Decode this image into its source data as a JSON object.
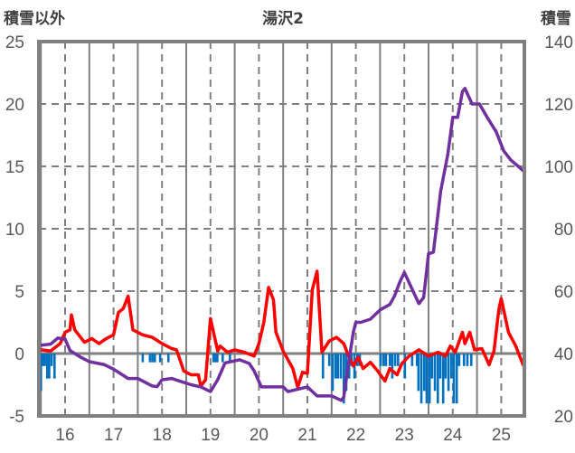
{
  "chart_data": {
    "type": "line",
    "title": "湯沢2",
    "ylabel_left": "積雪以外",
    "ylabel_right": "積雪",
    "xlim": [
      15.46,
      25.49
    ],
    "ylim_left": [
      -5,
      25
    ],
    "ylim_right": [
      20,
      140
    ],
    "x_ticks": [
      "16",
      "17",
      "18",
      "19",
      "20",
      "21",
      "22",
      "23",
      "24",
      "25"
    ],
    "y_ticks_left": [
      "25",
      "20",
      "15",
      "10",
      "5",
      "0",
      "-5"
    ],
    "y_ticks_right": [
      "140",
      "120",
      "100",
      "80",
      "60",
      "40",
      "20"
    ],
    "grid": true,
    "colors": {
      "temperature": "#ff0000",
      "snow_depth": "#7030a0",
      "bars": "#0070c0",
      "axis": "#808080",
      "grid": "#808080",
      "text": "#595959"
    },
    "series": [
      {
        "name": "red-line",
        "axis": "left",
        "color": "#ff0000",
        "points": [
          [
            15.5,
            0.3
          ],
          [
            15.7,
            0.2
          ],
          [
            15.9,
            0.8
          ],
          [
            16.0,
            1.7
          ],
          [
            16.1,
            1.9
          ],
          [
            16.13,
            3.1
          ],
          [
            16.2,
            1.9
          ],
          [
            16.4,
            0.9
          ],
          [
            16.55,
            1.2
          ],
          [
            16.7,
            0.8
          ],
          [
            16.85,
            1.2
          ],
          [
            17.0,
            1.5
          ],
          [
            17.1,
            3.3
          ],
          [
            17.2,
            3.6
          ],
          [
            17.3,
            4.6
          ],
          [
            17.4,
            1.9
          ],
          [
            17.6,
            1.5
          ],
          [
            17.8,
            1.3
          ],
          [
            18.0,
            0.8
          ],
          [
            18.2,
            0.4
          ],
          [
            18.3,
            0.3
          ],
          [
            18.45,
            -1.4
          ],
          [
            18.6,
            -1.7
          ],
          [
            18.75,
            -1.7
          ],
          [
            18.8,
            -2.6
          ],
          [
            18.9,
            -2.1
          ],
          [
            19.0,
            2.8
          ],
          [
            19.15,
            0.2
          ],
          [
            19.2,
            0.6
          ],
          [
            19.35,
            0.1
          ],
          [
            19.5,
            0.3
          ],
          [
            19.7,
            0.1
          ],
          [
            19.9,
            -0.2
          ],
          [
            20.0,
            0.8
          ],
          [
            20.1,
            2.5
          ],
          [
            20.2,
            5.3
          ],
          [
            20.3,
            4.3
          ],
          [
            20.35,
            1.7
          ],
          [
            20.5,
            0.2
          ],
          [
            20.7,
            -1.2
          ],
          [
            20.8,
            -2.7
          ],
          [
            20.9,
            -1.5
          ],
          [
            21.0,
            -1.6
          ],
          [
            21.1,
            5.1
          ],
          [
            21.2,
            6.6
          ],
          [
            21.3,
            0.1
          ],
          [
            21.45,
            1.0
          ],
          [
            21.6,
            1.3
          ],
          [
            21.75,
            0.8
          ],
          [
            21.85,
            -0.2
          ],
          [
            21.95,
            -1.0
          ],
          [
            22.05,
            -0.3
          ],
          [
            22.15,
            -1.2
          ],
          [
            22.3,
            -0.7
          ],
          [
            22.45,
            -1.4
          ],
          [
            22.6,
            -2.2
          ],
          [
            22.7,
            -1.2
          ],
          [
            22.85,
            -1.7
          ],
          [
            22.95,
            -0.8
          ],
          [
            23.1,
            -0.2
          ],
          [
            23.3,
            0.3
          ],
          [
            23.5,
            -0.2
          ],
          [
            23.7,
            0.1
          ],
          [
            23.85,
            -0.2
          ],
          [
            23.95,
            0.6
          ],
          [
            24.05,
            0.1
          ],
          [
            24.2,
            1.7
          ],
          [
            24.25,
            0.8
          ],
          [
            24.35,
            1.7
          ],
          [
            24.45,
            0.3
          ],
          [
            24.6,
            0.4
          ],
          [
            24.75,
            -0.9
          ],
          [
            24.85,
            0.2
          ],
          [
            24.95,
            3.5
          ],
          [
            25.0,
            4.4
          ],
          [
            25.05,
            3.5
          ],
          [
            25.15,
            1.7
          ],
          [
            25.3,
            0.6
          ],
          [
            25.45,
            -0.9
          ],
          [
            25.5,
            -1.0
          ]
        ]
      },
      {
        "name": "purple-line",
        "axis": "right",
        "color": "#7030a0",
        "points": [
          [
            15.47,
            42.6
          ],
          [
            15.7,
            43
          ],
          [
            15.85,
            45
          ],
          [
            16.0,
            44.6
          ],
          [
            16.1,
            41
          ],
          [
            16.3,
            39
          ],
          [
            16.5,
            37.4
          ],
          [
            16.8,
            36.5
          ],
          [
            17.0,
            35
          ],
          [
            17.3,
            32
          ],
          [
            17.5,
            32
          ],
          [
            17.8,
            29.6
          ],
          [
            17.9,
            29.4
          ],
          [
            18.0,
            31.6
          ],
          [
            18.2,
            32
          ],
          [
            18.4,
            31
          ],
          [
            18.6,
            30
          ],
          [
            18.8,
            29.3
          ],
          [
            19.0,
            27.8
          ],
          [
            19.15,
            31.6
          ],
          [
            19.3,
            37
          ],
          [
            19.6,
            38
          ],
          [
            19.8,
            36.8
          ],
          [
            19.9,
            34.5
          ],
          [
            20.05,
            29.3
          ],
          [
            20.5,
            29.3
          ],
          [
            20.6,
            27.8
          ],
          [
            21.0,
            29.3
          ],
          [
            21.2,
            26.4
          ],
          [
            21.5,
            26.4
          ],
          [
            21.7,
            25
          ],
          [
            21.75,
            26
          ],
          [
            21.85,
            37
          ],
          [
            21.95,
            47
          ],
          [
            22.0,
            50
          ],
          [
            22.1,
            50
          ],
          [
            22.3,
            51
          ],
          [
            22.5,
            54
          ],
          [
            22.7,
            55.7
          ],
          [
            22.8,
            58.5
          ],
          [
            22.9,
            62.6
          ],
          [
            23.0,
            66
          ],
          [
            23.3,
            56
          ],
          [
            23.4,
            58
          ],
          [
            23.5,
            72
          ],
          [
            23.6,
            72.5
          ],
          [
            23.75,
            92
          ],
          [
            23.9,
            104
          ],
          [
            24.0,
            115.7
          ],
          [
            24.1,
            115.7
          ],
          [
            24.2,
            124
          ],
          [
            24.25,
            125
          ],
          [
            24.4,
            120
          ],
          [
            24.55,
            120
          ],
          [
            24.7,
            116
          ],
          [
            24.9,
            111
          ],
          [
            25.05,
            105
          ],
          [
            25.2,
            102
          ],
          [
            25.35,
            100
          ],
          [
            25.5,
            98
          ]
        ]
      },
      {
        "name": "blue-bars",
        "axis": "left",
        "type": "bar",
        "color": "#0070c0",
        "points": [
          [
            15.5,
            -3
          ],
          [
            15.54,
            -1
          ],
          [
            15.58,
            -1
          ],
          [
            15.63,
            -2
          ],
          [
            15.67,
            -2
          ],
          [
            15.72,
            -1
          ],
          [
            15.78,
            -2
          ],
          [
            17.6,
            -0.7
          ],
          [
            17.75,
            -0.7
          ],
          [
            17.8,
            -0.7
          ],
          [
            17.85,
            -0.7
          ],
          [
            17.96,
            -0.7
          ],
          [
            18.13,
            -0.7
          ],
          [
            19.06,
            -0.7
          ],
          [
            19.1,
            -0.7
          ],
          [
            19.14,
            -0.7
          ],
          [
            19.25,
            -0.7
          ],
          [
            19.4,
            -0.7
          ],
          [
            21.32,
            -2
          ],
          [
            21.45,
            -1
          ],
          [
            21.52,
            -3
          ],
          [
            21.58,
            -2
          ],
          [
            21.63,
            -2
          ],
          [
            21.69,
            -2
          ],
          [
            21.75,
            -4
          ],
          [
            21.8,
            -3
          ],
          [
            21.86,
            -2
          ],
          [
            21.91,
            -1
          ],
          [
            21.97,
            -2
          ],
          [
            22.03,
            -1
          ],
          [
            22.08,
            -1
          ],
          [
            22.51,
            -1
          ],
          [
            22.57,
            -1
          ],
          [
            22.62,
            -1
          ],
          [
            22.7,
            -1
          ],
          [
            22.75,
            -2
          ],
          [
            22.81,
            -1
          ],
          [
            22.87,
            -1
          ],
          [
            23.01,
            -2
          ],
          [
            23.16,
            -1
          ],
          [
            23.26,
            -1
          ],
          [
            23.29,
            -3
          ],
          [
            23.35,
            -4
          ],
          [
            23.41,
            -3
          ],
          [
            23.46,
            -4
          ],
          [
            23.52,
            -4
          ],
          [
            23.57,
            -2
          ],
          [
            23.63,
            -3
          ],
          [
            23.69,
            -4
          ],
          [
            23.74,
            -2
          ],
          [
            23.8,
            -4
          ],
          [
            23.85,
            -2
          ],
          [
            23.91,
            -3
          ],
          [
            23.97,
            -2
          ],
          [
            24.02,
            -4
          ],
          [
            24.08,
            -4
          ],
          [
            24.13,
            -1
          ],
          [
            24.23,
            -1
          ],
          [
            24.3,
            -1
          ],
          [
            24.38,
            -1
          ]
        ]
      }
    ]
  }
}
